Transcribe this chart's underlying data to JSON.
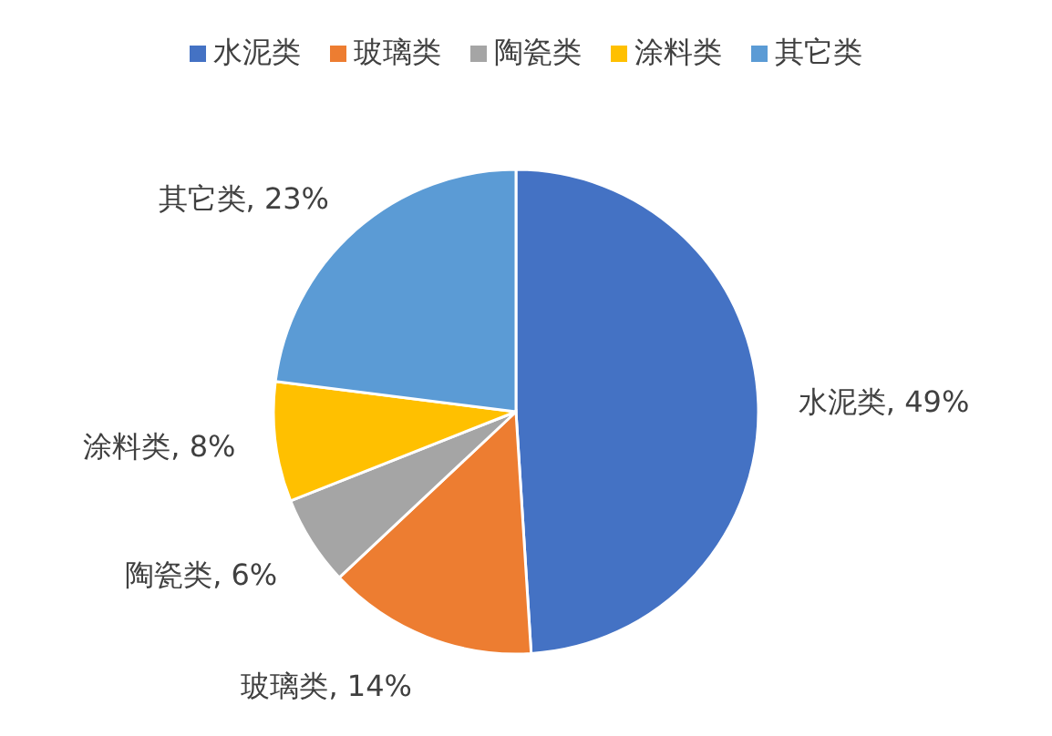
{
  "chart_data": {
    "type": "pie",
    "categories": [
      "水泥类",
      "玻璃类",
      "陶瓷类",
      "涂料类",
      "其它类"
    ],
    "values": [
      49,
      14,
      6,
      8,
      23
    ],
    "colors": [
      "#4472c4",
      "#ed7d31",
      "#a5a5a5",
      "#ffc000",
      "#5b9bd5"
    ],
    "value_labels": [
      "水泥类, 49%",
      "玻璃类, 14%",
      "陶瓷类, 6%",
      "涂料类, 8%",
      "其它类, 23%"
    ],
    "legend": "top"
  }
}
